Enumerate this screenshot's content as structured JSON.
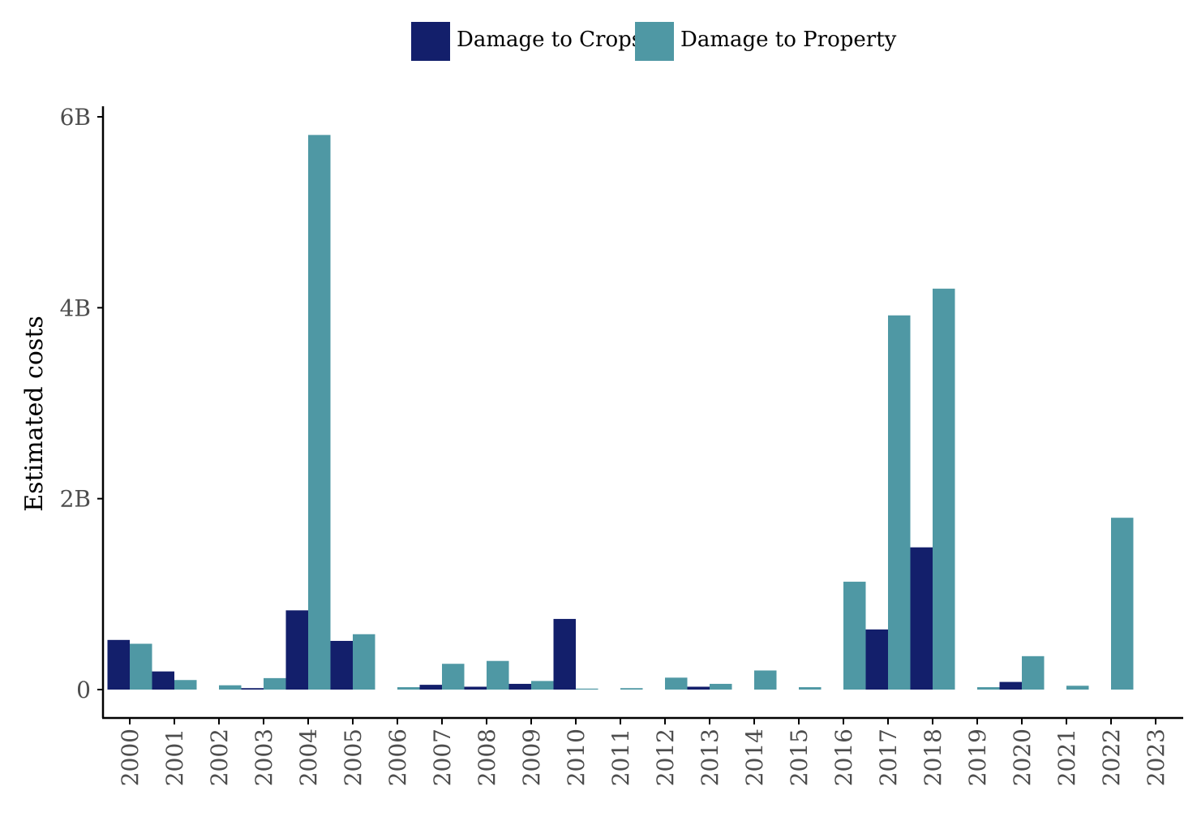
{
  "colors": {
    "crops": "#131f6b",
    "property": "#4f98a4"
  },
  "legend": {
    "crops_label": "Damage to Crops",
    "property_label": "Damage to Property"
  },
  "chart_data": {
    "type": "bar",
    "ylabel": "Estimated costs",
    "xlabel": "",
    "ylim": [
      -300000000,
      6100000000
    ],
    "yticks": [
      {
        "value": 0,
        "label": "0"
      },
      {
        "value": 2000000000,
        "label": "2B"
      },
      {
        "value": 4000000000,
        "label": "4B"
      },
      {
        "value": 6000000000,
        "label": "6B"
      }
    ],
    "legend_position": "top",
    "categories": [
      "2000",
      "2001",
      "2002",
      "2003",
      "2004",
      "2005",
      "2006",
      "2007",
      "2008",
      "2009",
      "2010",
      "2011",
      "2012",
      "2013",
      "2014",
      "2015",
      "2016",
      "2017",
      "2018",
      "2019",
      "2020",
      "2021",
      "2022",
      "2023"
    ],
    "series": [
      {
        "name": "Damage to Crops",
        "color": "#131f6b",
        "values": [
          520000000,
          190000000,
          0,
          15000000,
          830000000,
          510000000,
          0,
          50000000,
          30000000,
          60000000,
          740000000,
          0,
          0,
          30000000,
          0,
          0,
          0,
          630000000,
          1490000000,
          0,
          80000000,
          0,
          0,
          0
        ]
      },
      {
        "name": "Damage to Property",
        "color": "#4f98a4",
        "values": [
          480000000,
          100000000,
          45000000,
          120000000,
          5810000000,
          580000000,
          25000000,
          270000000,
          300000000,
          90000000,
          8000000,
          15000000,
          125000000,
          60000000,
          200000000,
          25000000,
          1130000000,
          3920000000,
          4200000000,
          25000000,
          350000000,
          40000000,
          1800000000,
          0
        ]
      }
    ]
  }
}
